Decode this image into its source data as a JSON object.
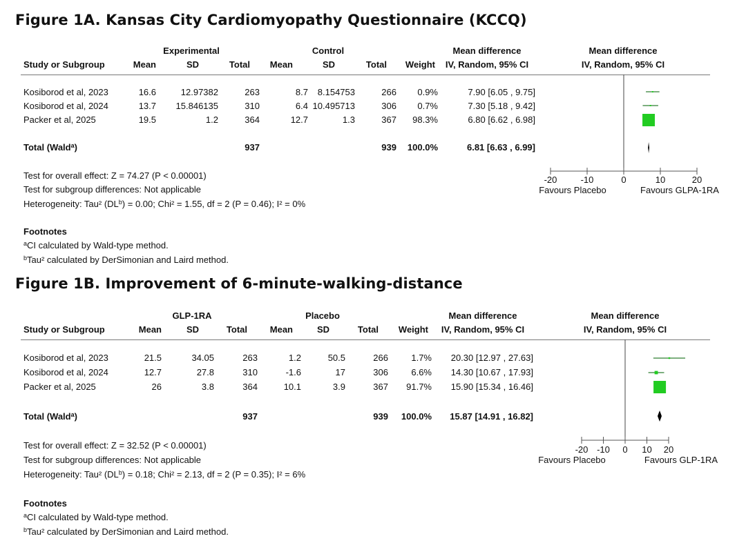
{
  "chart_data": [
    {
      "type": "forest",
      "title": "Figure 1A. Kansas City Cardiomyopathy Questionnaire (KCCQ)",
      "group_headers": {
        "experimental": "Experimental",
        "control": "Control",
        "md_left": "Mean difference",
        "md_right": "Mean difference"
      },
      "column_headers": {
        "study": "Study or Subgroup",
        "mean_e": "Mean",
        "sd_e": "SD",
        "total_e": "Total",
        "mean_c": "Mean",
        "sd_c": "SD",
        "total_c": "Total",
        "weight": "Weight",
        "md_left": "IV, Random, 95% CI",
        "md_right": "IV, Random, 95% CI"
      },
      "studies": [
        {
          "name": "Kosiborod et al, 2023",
          "mean_e": "16.6",
          "sd_e": "12.97382",
          "total_e": "263",
          "mean_c": "8.7",
          "sd_c": "8.154753",
          "total_c": "266",
          "weight": "0.9%",
          "ci_text": "7.90 [6.05 , 9.75]",
          "md": 7.9,
          "lo": 6.05,
          "hi": 9.75,
          "w": 0.9
        },
        {
          "name": "Kosiborod et al, 2024",
          "mean_e": "13.7",
          "sd_e": "15.846135",
          "total_e": "310",
          "mean_c": "6.4",
          "sd_c": "10.495713",
          "total_c": "306",
          "weight": "0.7%",
          "ci_text": "7.30 [5.18 , 9.42]",
          "md": 7.3,
          "lo": 5.18,
          "hi": 9.42,
          "w": 0.7
        },
        {
          "name": "Packer et al, 2025",
          "mean_e": "19.5",
          "sd_e": "1.2",
          "total_e": "364",
          "mean_c": "12.7",
          "sd_c": "1.3",
          "total_c": "367",
          "weight": "98.3%",
          "ci_text": "6.80 [6.62 , 6.98]",
          "md": 6.8,
          "lo": 6.62,
          "hi": 6.98,
          "w": 98.3
        }
      ],
      "total": {
        "label": "Total (Wald",
        "label_sup": "a",
        "label_close": ")",
        "total_e": "937",
        "total_c": "939",
        "weight": "100.0%",
        "ci_text": "6.81 [6.63 , 6.99]",
        "md": 6.81,
        "lo": 6.63,
        "hi": 6.99
      },
      "tests": [
        "Test for overall effect: Z = 74.27 (P < 0.00001)",
        "Test for subgroup differences: Not applicable"
      ],
      "heterogeneity": {
        "pre": "Heterogeneity: Tau² (DL",
        "sup": "b",
        "post": ") = 0.00; Chi² = 1.55, df = 2 (P = 0.46); I² = 0%"
      },
      "axis": {
        "min": -20,
        "max": 20,
        "ticks": [
          -20,
          -10,
          0,
          10,
          20
        ],
        "tick_labels": [
          "-20",
          "-10",
          "0",
          "10",
          "20"
        ],
        "left_label": "Favours Placebo",
        "right_label": "Favours GLPA-1RA"
      },
      "footnotes": {
        "heading": "Footnotes",
        "a_sup": "a",
        "a_text": "CI calculated by Wald-type method.",
        "b_sup": "b",
        "b_text": "Tau² calculated by DerSimonian and Laird method."
      },
      "colors": {
        "square": "#22cc22",
        "ci_line": "#2e7d32",
        "diamond": "#000000",
        "axis": "#555555"
      }
    },
    {
      "type": "forest",
      "title": "Figure 1B. Improvement of 6-minute-walking-distance",
      "group_headers": {
        "experimental": "GLP-1RA",
        "control": "Placebo",
        "md_left": "Mean difference",
        "md_right": "Mean difference"
      },
      "column_headers": {
        "study": "Study or Subgroup",
        "mean_e": "Mean",
        "sd_e": "SD",
        "total_e": "Total",
        "mean_c": "Mean",
        "sd_c": "SD",
        "total_c": "Total",
        "weight": "Weight",
        "md_left": "IV, Random, 95% CI",
        "md_right": "IV, Random, 95% CI"
      },
      "studies": [
        {
          "name": "Kosiborod et al, 2023",
          "mean_e": "21.5",
          "sd_e": "34.05",
          "total_e": "263",
          "mean_c": "1.2",
          "sd_c": "50.5",
          "total_c": "266",
          "weight": "1.7%",
          "ci_text": "20.30 [12.97 , 27.63]",
          "md": 20.3,
          "lo": 12.97,
          "hi": 27.63,
          "w": 1.7
        },
        {
          "name": "Kosiborod et al, 2024",
          "mean_e": "12.7",
          "sd_e": "27.8",
          "total_e": "310",
          "mean_c": "-1.6",
          "sd_c": "17",
          "total_c": "306",
          "weight": "6.6%",
          "ci_text": "14.30 [10.67 , 17.93]",
          "md": 14.3,
          "lo": 10.67,
          "hi": 17.93,
          "w": 6.6
        },
        {
          "name": "Packer et al, 2025",
          "mean_e": "26",
          "sd_e": "3.8",
          "total_e": "364",
          "mean_c": "10.1",
          "sd_c": "3.9",
          "total_c": "367",
          "weight": "91.7%",
          "ci_text": "15.90 [15.34 , 16.46]",
          "md": 15.9,
          "lo": 15.34,
          "hi": 16.46,
          "w": 91.7
        }
      ],
      "total": {
        "label": "Total (Wald",
        "label_sup": "a",
        "label_close": ")",
        "total_e": "937",
        "total_c": "939",
        "weight": "100.0%",
        "ci_text": "15.87 [14.91 , 16.82]",
        "md": 15.87,
        "lo": 14.91,
        "hi": 16.82
      },
      "tests": [
        "Test for overall effect: Z = 32.52 (P < 0.00001)",
        "Test for subgroup differences: Not applicable"
      ],
      "heterogeneity": {
        "pre": "Heterogeneity: Tau² (DL",
        "sup": "b",
        "post": ") = 0.18; Chi² = 2.13, df = 2 (P = 0.35); I² = 6%"
      },
      "axis": {
        "min": -20,
        "max": 20,
        "ticks": [
          -20,
          -10,
          0,
          10,
          20
        ],
        "tick_labels": [
          "-20",
          "-10",
          "0",
          "10",
          "20"
        ],
        "left_label": "Favours Placebo",
        "right_label": "Favours GLP-1RA"
      },
      "footnotes": {
        "heading": "Footnotes",
        "a_sup": "a",
        "a_text": "CI calculated by Wald-type method.",
        "b_sup": "b",
        "b_text": "Tau² calculated by DerSimonian and Laird method."
      },
      "colors": {
        "square": "#22cc22",
        "ci_line": "#2e7d32",
        "diamond": "#000000",
        "axis": "#555555"
      }
    }
  ]
}
